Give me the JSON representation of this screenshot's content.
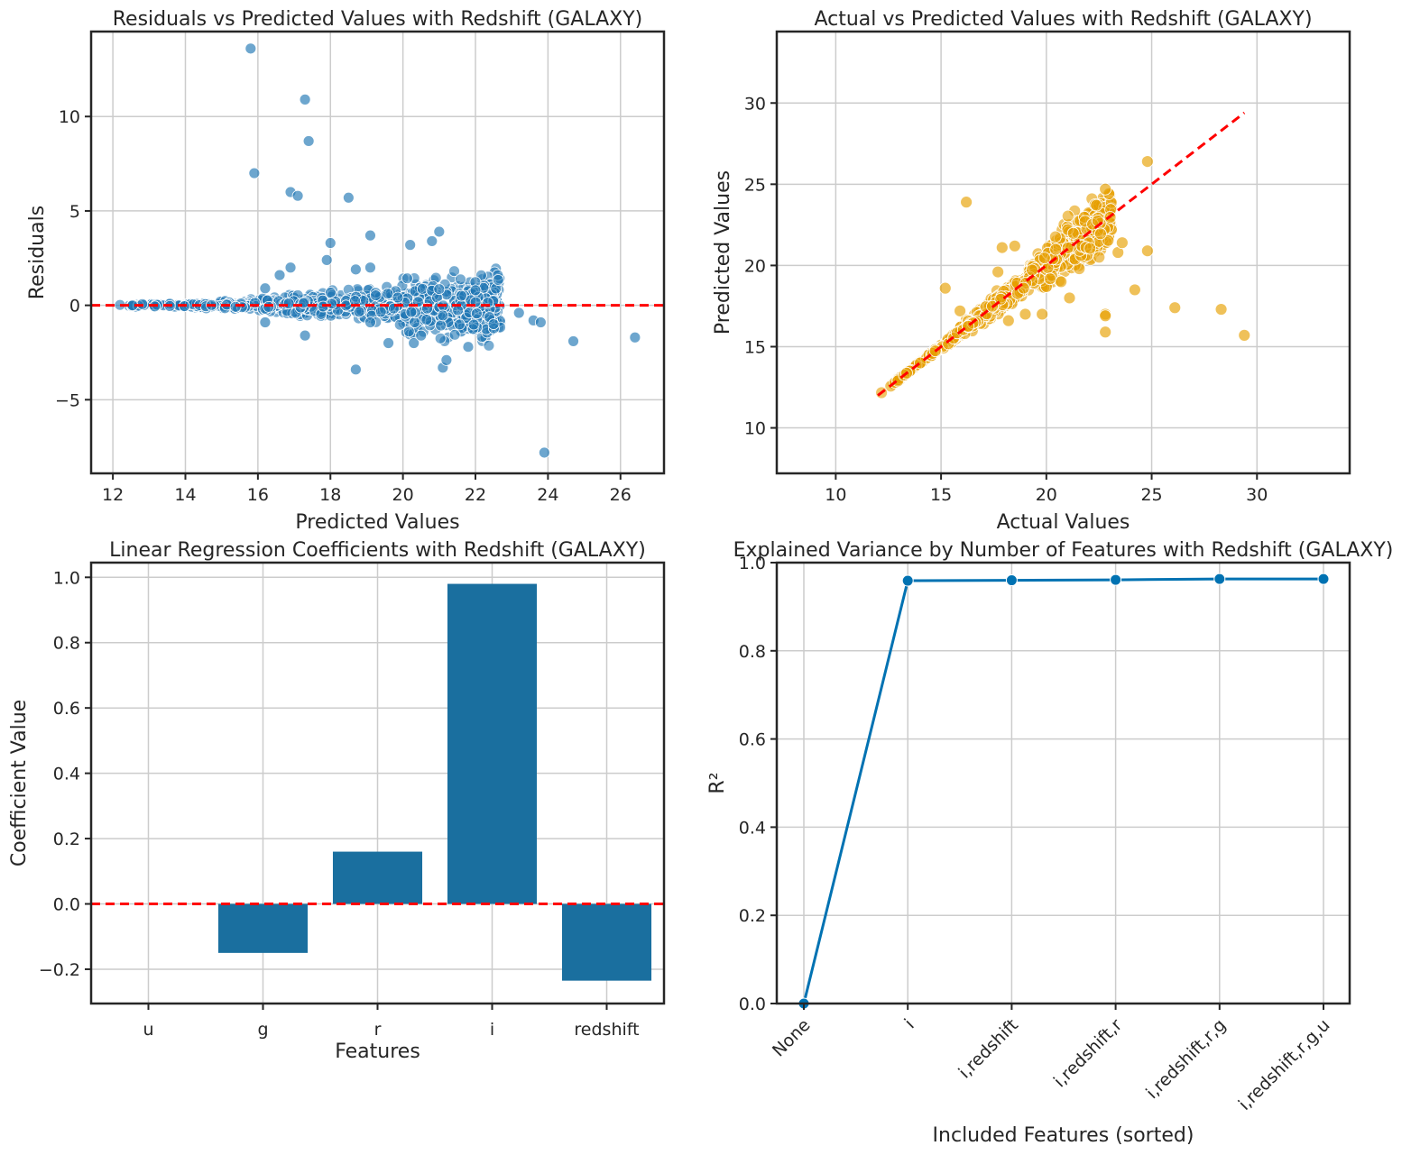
{
  "colors": {
    "blue": "#1f77b4",
    "bar": "#1a6f9f",
    "line": "#0072b2",
    "orange": "#e69f00",
    "ref": "#ff0000",
    "grid": "#cccccc",
    "axis": "#262626"
  },
  "chart_data": [
    {
      "id": "residuals",
      "type": "scatter",
      "title": "Residuals vs Predicted Values with Redshift (GALAXY)",
      "xlabel": "Predicted Values",
      "ylabel": "Residuals",
      "xlim": [
        11.4,
        27.2
      ],
      "ylim": [
        -8.9,
        14.5
      ],
      "xticks": [
        12,
        14,
        16,
        18,
        20,
        22,
        24,
        26
      ],
      "yticks": [
        -5,
        0,
        5,
        10
      ],
      "ytick_labels": [
        "−5",
        "0",
        "5",
        "10"
      ],
      "grid": true,
      "reference_line": {
        "type": "hline",
        "y": 0,
        "style": "dashed",
        "color": "red"
      },
      "points_color": "blue",
      "outliers": [
        {
          "x": 15.8,
          "y": 13.6
        },
        {
          "x": 17.3,
          "y": 10.9
        },
        {
          "x": 17.4,
          "y": 8.7
        },
        {
          "x": 15.9,
          "y": 7.0
        },
        {
          "x": 16.9,
          "y": 6.0
        },
        {
          "x": 17.1,
          "y": 5.8
        },
        {
          "x": 18.5,
          "y": 5.7
        },
        {
          "x": 21.0,
          "y": 3.9
        },
        {
          "x": 19.1,
          "y": 3.7
        },
        {
          "x": 18.0,
          "y": 3.3
        },
        {
          "x": 20.8,
          "y": 3.4
        },
        {
          "x": 20.2,
          "y": 3.2
        },
        {
          "x": 17.9,
          "y": 2.4
        },
        {
          "x": 16.6,
          "y": 1.6
        },
        {
          "x": 16.9,
          "y": 2.0
        },
        {
          "x": 18.7,
          "y": 1.9
        },
        {
          "x": 19.1,
          "y": 2.0
        },
        {
          "x": 16.2,
          "y": 0.9
        },
        {
          "x": 17.3,
          "y": -1.6
        },
        {
          "x": 18.7,
          "y": -3.4
        },
        {
          "x": 21.1,
          "y": -3.3
        },
        {
          "x": 21.2,
          "y": -2.9
        },
        {
          "x": 19.6,
          "y": -2.0
        },
        {
          "x": 20.3,
          "y": -2.0
        },
        {
          "x": 21.8,
          "y": -2.2
        },
        {
          "x": 19.1,
          "y": -0.9
        },
        {
          "x": 16.2,
          "y": -0.9
        },
        {
          "x": 23.9,
          "y": -7.8
        },
        {
          "x": 24.7,
          "y": -1.9
        },
        {
          "x": 26.4,
          "y": -1.7
        },
        {
          "x": 23.6,
          "y": -0.8
        },
        {
          "x": 23.8,
          "y": -0.9
        },
        {
          "x": 23.2,
          "y": -0.4
        },
        {
          "x": 22.5,
          "y": -1.0
        },
        {
          "x": 20.5,
          "y": -1.6
        },
        {
          "x": 22.0,
          "y": 0.8
        }
      ]
    },
    {
      "id": "actual-vs-predicted",
      "type": "scatter",
      "title": "Actual vs Predicted Values with Redshift (GALAXY)",
      "xlabel": "Actual Values",
      "ylabel": "Predicted Values",
      "xlim": [
        7.2,
        34.4
      ],
      "ylim": [
        7.2,
        34.4
      ],
      "xticks": [
        10,
        15,
        20,
        25,
        30
      ],
      "yticks": [
        10,
        15,
        20,
        25,
        30
      ],
      "grid": true,
      "reference_line": {
        "type": "diagonal",
        "from": [
          12.0,
          12.0
        ],
        "to": [
          29.4,
          29.4
        ],
        "style": "dashed",
        "color": "red"
      },
      "points_color": "orange",
      "outliers": [
        {
          "x": 16.2,
          "y": 23.9
        },
        {
          "x": 24.8,
          "y": 26.4
        },
        {
          "x": 22.8,
          "y": 24.7
        },
        {
          "x": 29.4,
          "y": 15.7
        },
        {
          "x": 28.3,
          "y": 17.3
        },
        {
          "x": 26.1,
          "y": 17.4
        },
        {
          "x": 24.8,
          "y": 20.9
        },
        {
          "x": 24.2,
          "y": 18.5
        },
        {
          "x": 22.8,
          "y": 17.0
        },
        {
          "x": 22.8,
          "y": 15.9
        },
        {
          "x": 22.8,
          "y": 16.9
        },
        {
          "x": 15.2,
          "y": 18.6
        },
        {
          "x": 15.9,
          "y": 17.2
        },
        {
          "x": 17.7,
          "y": 19.6
        },
        {
          "x": 17.9,
          "y": 21.1
        },
        {
          "x": 18.5,
          "y": 21.2
        },
        {
          "x": 19.0,
          "y": 17.0
        },
        {
          "x": 19.8,
          "y": 17.0
        },
        {
          "x": 18.2,
          "y": 16.6
        },
        {
          "x": 21.1,
          "y": 18.0
        },
        {
          "x": 20.7,
          "y": 19.0
        },
        {
          "x": 23.4,
          "y": 20.8
        },
        {
          "x": 23.6,
          "y": 21.4
        }
      ]
    },
    {
      "id": "coefficients",
      "type": "bar",
      "title": "Linear Regression Coefficients with Redshift (GALAXY)",
      "xlabel": "Features",
      "ylabel": "Coefficient Value",
      "categories": [
        "u",
        "g",
        "r",
        "i",
        "redshift"
      ],
      "values": [
        0.0,
        -0.15,
        0.16,
        0.98,
        -0.235
      ],
      "ylim": [
        -0.305,
        1.045
      ],
      "yticks": [
        -0.2,
        0.0,
        0.2,
        0.4,
        0.6,
        0.8,
        1.0
      ],
      "ytick_labels": [
        "−0.2",
        "0.0",
        "0.2",
        "0.4",
        "0.6",
        "0.8",
        "1.0"
      ],
      "grid": true,
      "reference_line": {
        "type": "hline",
        "y": 0,
        "style": "dashed",
        "color": "red"
      }
    },
    {
      "id": "explained-variance",
      "type": "line",
      "title": "Explained Variance by Number of Features with Redshift (GALAXY)",
      "xlabel": "Included Features (sorted)",
      "ylabel": "R²",
      "categories": [
        "None",
        "i",
        "i,redshift",
        "i,redshift,r",
        "i,redshift,r,g",
        "i,redshift,r,g,u"
      ],
      "values": [
        0.0,
        0.959,
        0.96,
        0.961,
        0.963,
        0.963
      ],
      "ylim": [
        0.0,
        1.0
      ],
      "yticks": [
        0.0,
        0.2,
        0.4,
        0.6,
        0.8,
        1.0
      ],
      "ytick_labels": [
        "0.0",
        "0.2",
        "0.4",
        "0.6",
        "0.8",
        "1.0"
      ],
      "xtick_rotation": -45,
      "grid": true,
      "markers": true
    }
  ]
}
